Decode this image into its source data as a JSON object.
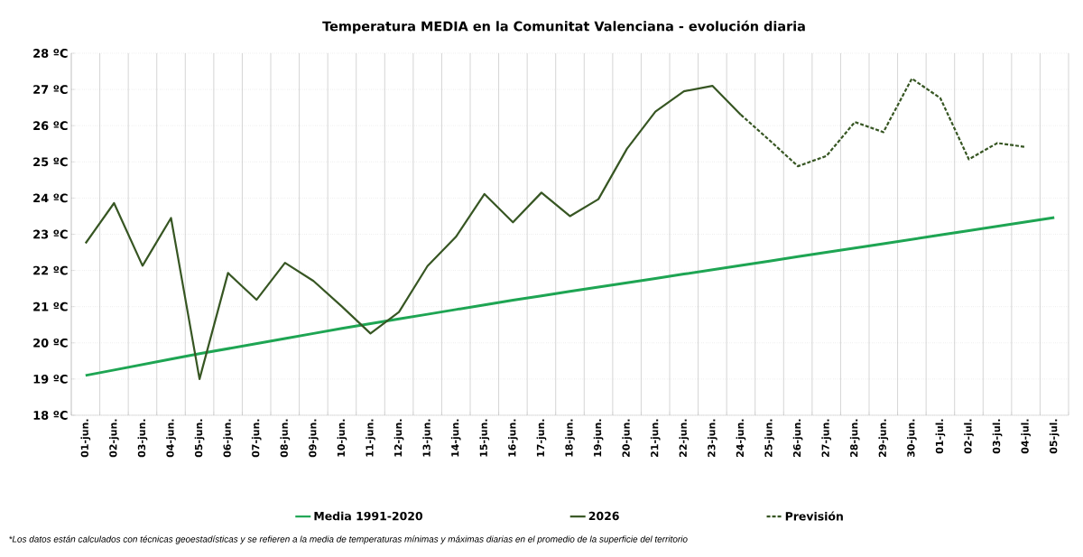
{
  "chart_data": {
    "type": "line",
    "title": "Temperatura MEDIA en la Comunitat Valenciana - evolución diaria",
    "categories": [
      "01-jun.",
      "02-jun.",
      "03-jun.",
      "04-jun.",
      "05-jun.",
      "06-jun.",
      "07-jun.",
      "08-jun.",
      "09-jun.",
      "10-jun.",
      "11-jun.",
      "12-jun.",
      "13-jun.",
      "14-jun.",
      "15-jun.",
      "16-jun.",
      "17-jun.",
      "18-jun.",
      "19-jun.",
      "20-jun.",
      "21-jun.",
      "22-jun.",
      "23-jun.",
      "24-jun.",
      "25-jun.",
      "26-jun.",
      "27-jun.",
      "28-jun.",
      "29-jun.",
      "30-jun.",
      "01-jul.",
      "02-jul.",
      "03-jul.",
      "04-jul.",
      "05-jul."
    ],
    "series": [
      {
        "name": "Media 1991-2020",
        "color": "#1ea553",
        "line_style": "solid",
        "values": [
          19.1,
          19.25,
          19.4,
          19.55,
          19.7,
          19.84,
          19.98,
          20.12,
          20.26,
          20.4,
          20.53,
          20.66,
          20.79,
          20.92,
          21.05,
          21.18,
          21.3,
          21.42,
          21.54,
          21.66,
          21.78,
          21.9,
          22.02,
          22.14,
          22.26,
          22.38,
          22.5,
          22.62,
          22.74,
          22.86,
          22.98,
          23.1,
          23.22,
          23.34,
          23.46
        ]
      },
      {
        "name": "2026",
        "color": "#375623",
        "line_style": "solid",
        "values": [
          22.75,
          23.86,
          22.13,
          23.45,
          19.0,
          21.93,
          21.19,
          22.21,
          21.71,
          21.0,
          20.26,
          20.85,
          22.12,
          22.93,
          24.11,
          23.33,
          24.15,
          23.5,
          23.97,
          25.36,
          26.39,
          26.95,
          27.1,
          26.3,
          null,
          null,
          null,
          null,
          null,
          null,
          null,
          null,
          null,
          null,
          null
        ]
      },
      {
        "name": "Previsión",
        "color": "#375623",
        "line_style": "dashed",
        "values": [
          null,
          null,
          null,
          null,
          null,
          null,
          null,
          null,
          null,
          null,
          null,
          null,
          null,
          null,
          null,
          null,
          null,
          null,
          null,
          null,
          null,
          null,
          null,
          26.3,
          25.6,
          24.88,
          25.16,
          26.1,
          25.82,
          27.3,
          26.76,
          25.07,
          25.52,
          25.41,
          null
        ]
      }
    ],
    "ylim": [
      18,
      28
    ],
    "yticks": [
      {
        "value": 18,
        "label": "18 ºC"
      },
      {
        "value": 19,
        "label": "19 ºC"
      },
      {
        "value": 20,
        "label": "20 ºC"
      },
      {
        "value": 21,
        "label": "21 ºC"
      },
      {
        "value": 22,
        "label": "22 ºC"
      },
      {
        "value": 23,
        "label": "23 ºC"
      },
      {
        "value": 24,
        "label": "24 ºC"
      },
      {
        "value": 25,
        "label": "25 ºC"
      },
      {
        "value": 26,
        "label": "26 ºC"
      },
      {
        "value": 27,
        "label": "27 ºC"
      },
      {
        "value": 28,
        "label": "28 ºC"
      }
    ],
    "grid": true,
    "legend": "bottom",
    "annotations": [
      "*Los datos están calculados con técnicas geoestadísticas y se refieren a la media de temperaturas mínimas y máximas diarias en el promedio de la superficie del territorio"
    ]
  }
}
